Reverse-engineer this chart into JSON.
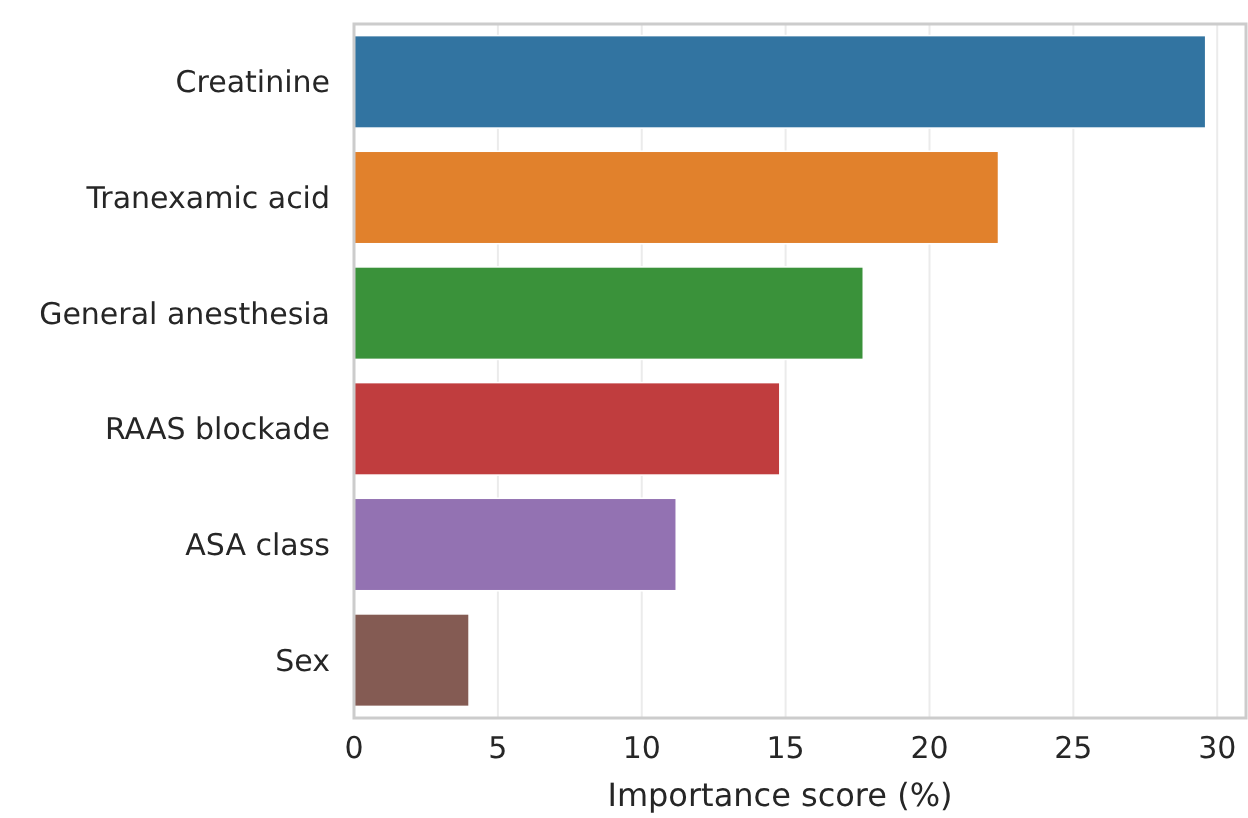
{
  "chart_data": {
    "type": "bar",
    "orientation": "horizontal",
    "xlabel": "Importance score (%)",
    "categories": [
      "Creatinine",
      "Tranexamic acid",
      "General anesthesia",
      "RAAS blockade",
      "ASA class",
      "Sex"
    ],
    "values": [
      29.6,
      22.4,
      17.7,
      14.8,
      11.2,
      4.0
    ],
    "colors": [
      "#3274a1",
      "#e1812c",
      "#3a923a",
      "#c03d3e",
      "#9372b2",
      "#845b53"
    ],
    "xlim": [
      0,
      31
    ],
    "xticks": [
      0,
      5,
      10,
      15,
      20,
      25,
      30
    ],
    "grid": "x"
  }
}
